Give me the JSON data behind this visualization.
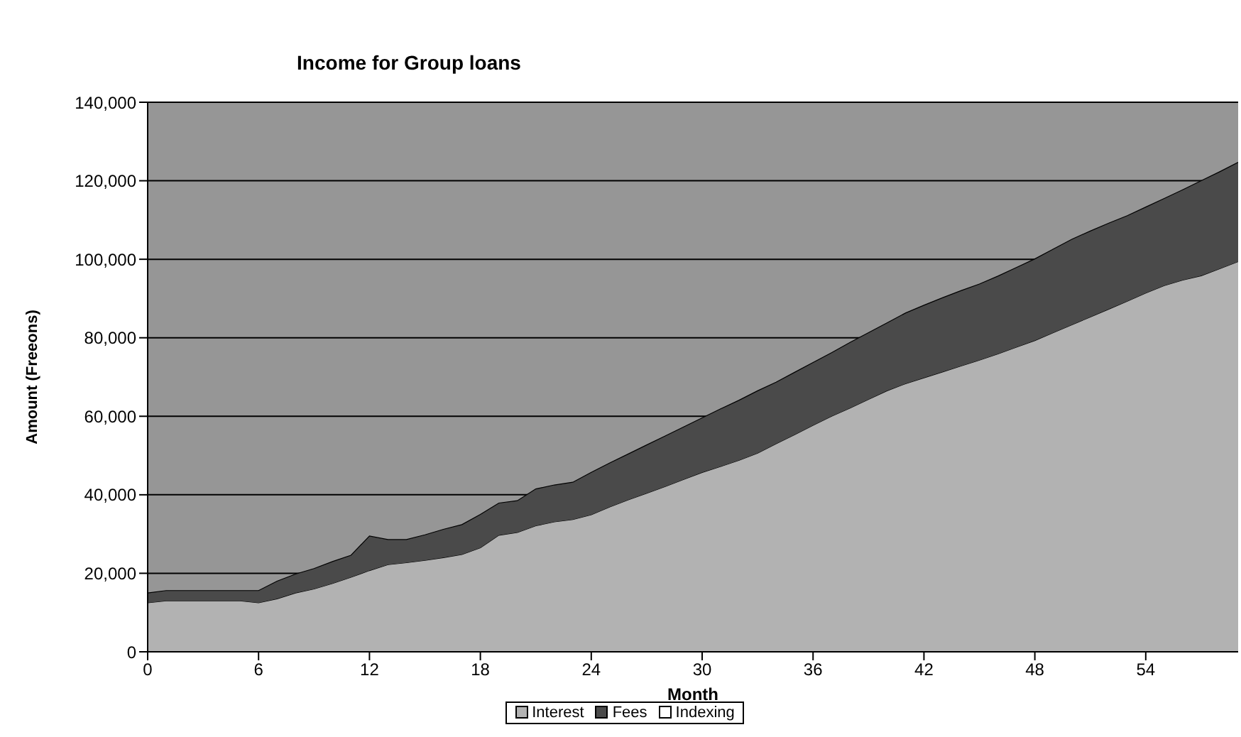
{
  "chart_data": {
    "type": "area",
    "title": "Income for Group loans",
    "xlabel": "Month",
    "ylabel": "Amount (Freeons)",
    "stacked": true,
    "x": [
      0,
      1,
      2,
      3,
      4,
      5,
      6,
      7,
      8,
      9,
      10,
      11,
      12,
      13,
      14,
      15,
      16,
      17,
      18,
      19,
      20,
      21,
      22,
      23,
      24,
      25,
      26,
      27,
      28,
      29,
      30,
      31,
      32,
      33,
      34,
      35,
      36,
      37,
      38,
      39,
      40,
      41,
      42,
      43,
      44,
      45,
      46,
      47,
      48,
      49,
      50,
      51,
      52,
      53,
      54,
      55,
      56,
      57,
      58,
      59
    ],
    "series": [
      {
        "name": "Interest",
        "color": "#b2b2b2",
        "values": [
          12500,
          13000,
          13000,
          13000,
          13000,
          13000,
          12500,
          13500,
          15000,
          16000,
          17400,
          19000,
          20700,
          22200,
          22700,
          23300,
          24000,
          24800,
          26500,
          29700,
          30400,
          32100,
          33100,
          33700,
          34900,
          36900,
          38700,
          40400,
          42100,
          43900,
          45700,
          47200,
          48800,
          50600,
          53000,
          55300,
          57700,
          60000,
          62100,
          64300,
          66500,
          68300,
          69800,
          71300,
          72800,
          74300,
          75900,
          77600,
          79300,
          81300,
          83300,
          85300,
          87300,
          89300,
          91400,
          93300,
          94700,
          95800,
          97600,
          99400
        ]
      },
      {
        "name": "Fees",
        "color": "#4a4a4a",
        "values": [
          2500,
          2600,
          2600,
          2600,
          2600,
          2600,
          3100,
          4500,
          4800,
          5200,
          5600,
          5600,
          8800,
          6400,
          5900,
          6500,
          7200,
          7600,
          8500,
          8200,
          8100,
          9400,
          9400,
          9500,
          10800,
          11200,
          11700,
          12300,
          12900,
          13400,
          13900,
          14700,
          15300,
          15900,
          15700,
          15900,
          16000,
          16200,
          16700,
          17000,
          17300,
          18000,
          18500,
          18900,
          19200,
          19400,
          19800,
          20300,
          20800,
          21300,
          21800,
          21900,
          21900,
          21800,
          21900,
          22200,
          23000,
          24200,
          24700,
          25300
        ]
      },
      {
        "name": "Indexing",
        "color": "#ffffff",
        "values": [
          null,
          null,
          null,
          null,
          null,
          null,
          null,
          null,
          null,
          null,
          null,
          null,
          null,
          null,
          null,
          null,
          null,
          null,
          null,
          null,
          null,
          null,
          null,
          null,
          null,
          null,
          null,
          null,
          null,
          null,
          null,
          null,
          null,
          null,
          null,
          null,
          null,
          null,
          null,
          null,
          null,
          null,
          null,
          null,
          null,
          null,
          null,
          null,
          null,
          null,
          null,
          null,
          null,
          null,
          null,
          null,
          null,
          null,
          null,
          null
        ]
      }
    ],
    "xlim": [
      0,
      59
    ],
    "xticks": [
      0,
      6,
      12,
      18,
      24,
      30,
      36,
      42,
      48,
      54
    ],
    "ylim": [
      0,
      140000
    ],
    "yticks": [
      0,
      {
        "value": 20000,
        "label": "20,000"
      },
      {
        "value": 40000,
        "label": "40,000"
      },
      {
        "value": 60000,
        "label": "60,000"
      },
      {
        "value": 80000,
        "label": "80,000"
      },
      {
        "value": 100000,
        "label": "100,000"
      },
      {
        "value": 120000,
        "label": "120,000"
      },
      {
        "value": 140000,
        "label": "140,000"
      }
    ],
    "grid": "y",
    "legend": "bottom"
  }
}
